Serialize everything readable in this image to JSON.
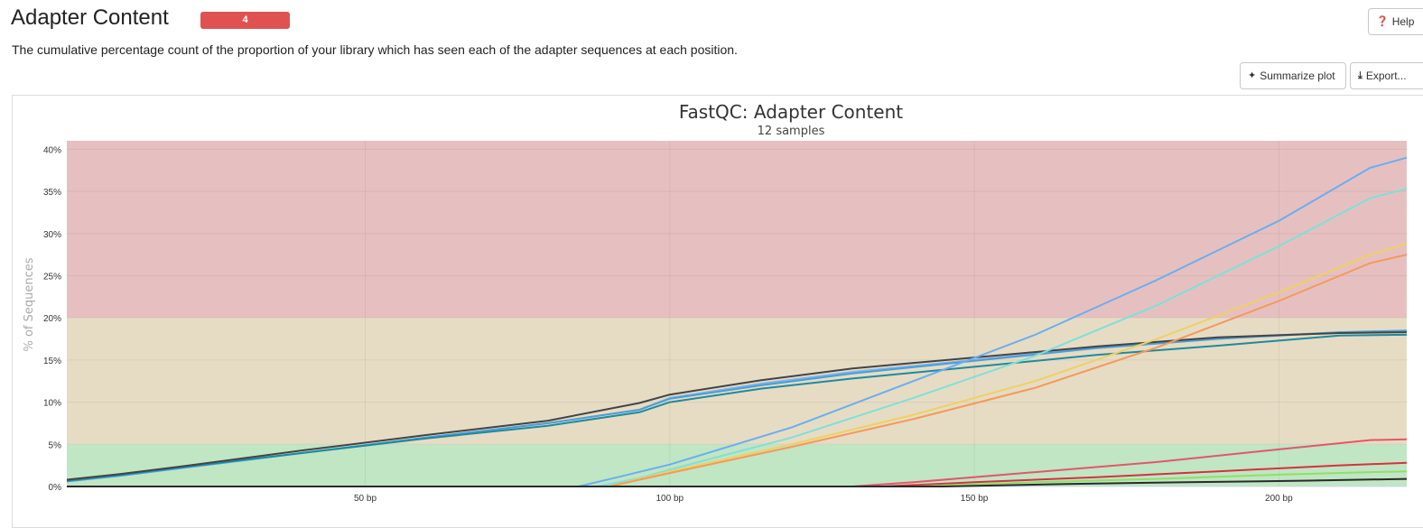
{
  "header": {
    "title": "Adapter Content",
    "badge": "4",
    "description": "The cumulative percentage count of the proportion of your library which has seen each of the adapter sequences at each position."
  },
  "toolbar": {
    "help_label": "Help",
    "help_icon": "question-circle-icon",
    "summarize_label": "Summarize plot",
    "summarize_icon": "sparkle-icon",
    "export_label": "Export...",
    "export_icon": "download-icon"
  },
  "colors": {
    "badge": "#e05252",
    "zone_fail": "#e6c0c0",
    "zone_warn": "#e6dcc4",
    "zone_pass": "#c0e6c4"
  },
  "chart_data": {
    "type": "line",
    "title": "FastQC: Adapter Content",
    "subtitle": "12 samples",
    "xlabel": "",
    "ylabel": "% of Sequences",
    "xlim": [
      1,
      221
    ],
    "ylim": [
      0,
      41
    ],
    "x_ticks": [
      50,
      100,
      150,
      200
    ],
    "x_tick_labels": [
      "50 bp",
      "100 bp",
      "150 bp",
      "200 bp"
    ],
    "y_ticks": [
      0,
      5,
      10,
      15,
      20,
      25,
      30,
      35,
      40
    ],
    "y_tick_labels": [
      "0%",
      "5%",
      "10%",
      "15%",
      "20%",
      "25%",
      "30%",
      "35%",
      "40%"
    ],
    "grid": true,
    "bands": [
      {
        "from": 0,
        "to": 5,
        "color": "#c0e6c4"
      },
      {
        "from": 5,
        "to": 20,
        "color": "#e6dcc4"
      },
      {
        "from": 20,
        "to": 41,
        "color": "#e6c0c0"
      }
    ],
    "series": [
      {
        "color": "#7cb5ec",
        "x": [
          1,
          10,
          20,
          40,
          60,
          80,
          95,
          100,
          115,
          130,
          150,
          170,
          190,
          210,
          221
        ],
        "values": [
          0.6,
          1.3,
          2.2,
          4.0,
          5.8,
          7.5,
          9.1,
          10.5,
          12.2,
          13.6,
          15.0,
          16.5,
          17.6,
          18.3,
          18.4
        ]
      },
      {
        "color": "#4a9fd8",
        "x": [
          1,
          10,
          20,
          40,
          60,
          80,
          95,
          100,
          115,
          130,
          150,
          170,
          190,
          210,
          221
        ],
        "values": [
          0.6,
          1.3,
          2.2,
          4.0,
          5.8,
          7.5,
          9.1,
          10.4,
          12.0,
          13.4,
          14.9,
          16.4,
          17.5,
          18.3,
          18.5
        ]
      },
      {
        "color": "#1f8a9e",
        "x": [
          1,
          10,
          20,
          40,
          60,
          80,
          95,
          100,
          115,
          130,
          150,
          170,
          190,
          210,
          221
        ],
        "values": [
          0.7,
          1.4,
          2.3,
          4.0,
          5.7,
          7.2,
          8.8,
          10.0,
          11.6,
          12.8,
          14.2,
          15.6,
          16.7,
          17.9,
          18.0
        ]
      },
      {
        "color": "#444444",
        "x": [
          1,
          10,
          20,
          40,
          60,
          80,
          95,
          100,
          115,
          130,
          150,
          170,
          190,
          210,
          221
        ],
        "values": [
          0.8,
          1.5,
          2.4,
          4.3,
          6.1,
          7.8,
          9.9,
          10.9,
          12.6,
          14.0,
          15.3,
          16.6,
          17.7,
          18.2,
          18.3
        ]
      },
      {
        "color": "#6aaef0",
        "x": [
          1,
          85,
          92,
          100,
          120,
          140,
          160,
          180,
          200,
          215,
          221
        ],
        "values": [
          0,
          0,
          1.2,
          2.6,
          7.0,
          12.5,
          18.0,
          24.5,
          31.5,
          37.8,
          39.0
        ]
      },
      {
        "color": "#7fe0d8",
        "x": [
          1,
          88,
          95,
          100,
          120,
          140,
          160,
          180,
          200,
          215,
          221
        ],
        "values": [
          0,
          0,
          1.0,
          2.0,
          5.8,
          10.5,
          15.5,
          21.5,
          28.5,
          34.2,
          35.3
        ]
      },
      {
        "color": "#f0d060",
        "x": [
          1,
          90,
          100,
          120,
          140,
          160,
          180,
          200,
          215,
          221
        ],
        "values": [
          0,
          0,
          1.8,
          5.0,
          8.5,
          12.5,
          17.5,
          23.0,
          27.5,
          28.8
        ]
      },
      {
        "color": "#f4995a",
        "x": [
          1,
          90,
          100,
          120,
          140,
          160,
          180,
          200,
          215,
          221
        ],
        "values": [
          0,
          0,
          1.6,
          4.7,
          8.0,
          11.7,
          16.5,
          22.0,
          26.5,
          27.5
        ]
      },
      {
        "color": "#e4566a",
        "x": [
          1,
          130,
          140,
          160,
          180,
          200,
          215,
          221
        ],
        "values": [
          0,
          0,
          0.5,
          1.7,
          2.9,
          4.4,
          5.5,
          5.6
        ]
      },
      {
        "color": "#d83040",
        "x": [
          1,
          135,
          150,
          170,
          190,
          210,
          221
        ],
        "values": [
          0,
          0,
          0.5,
          1.1,
          1.8,
          2.5,
          2.8
        ]
      },
      {
        "color": "#8ee06a",
        "x": [
          1,
          140,
          160,
          180,
          200,
          215,
          221
        ],
        "values": [
          0,
          0,
          0.5,
          0.9,
          1.4,
          1.7,
          1.8
        ]
      },
      {
        "color": "#2a2a2a",
        "x": [
          1,
          145,
          165,
          185,
          205,
          221
        ],
        "values": [
          0,
          0,
          0.3,
          0.5,
          0.7,
          0.9
        ]
      }
    ]
  }
}
